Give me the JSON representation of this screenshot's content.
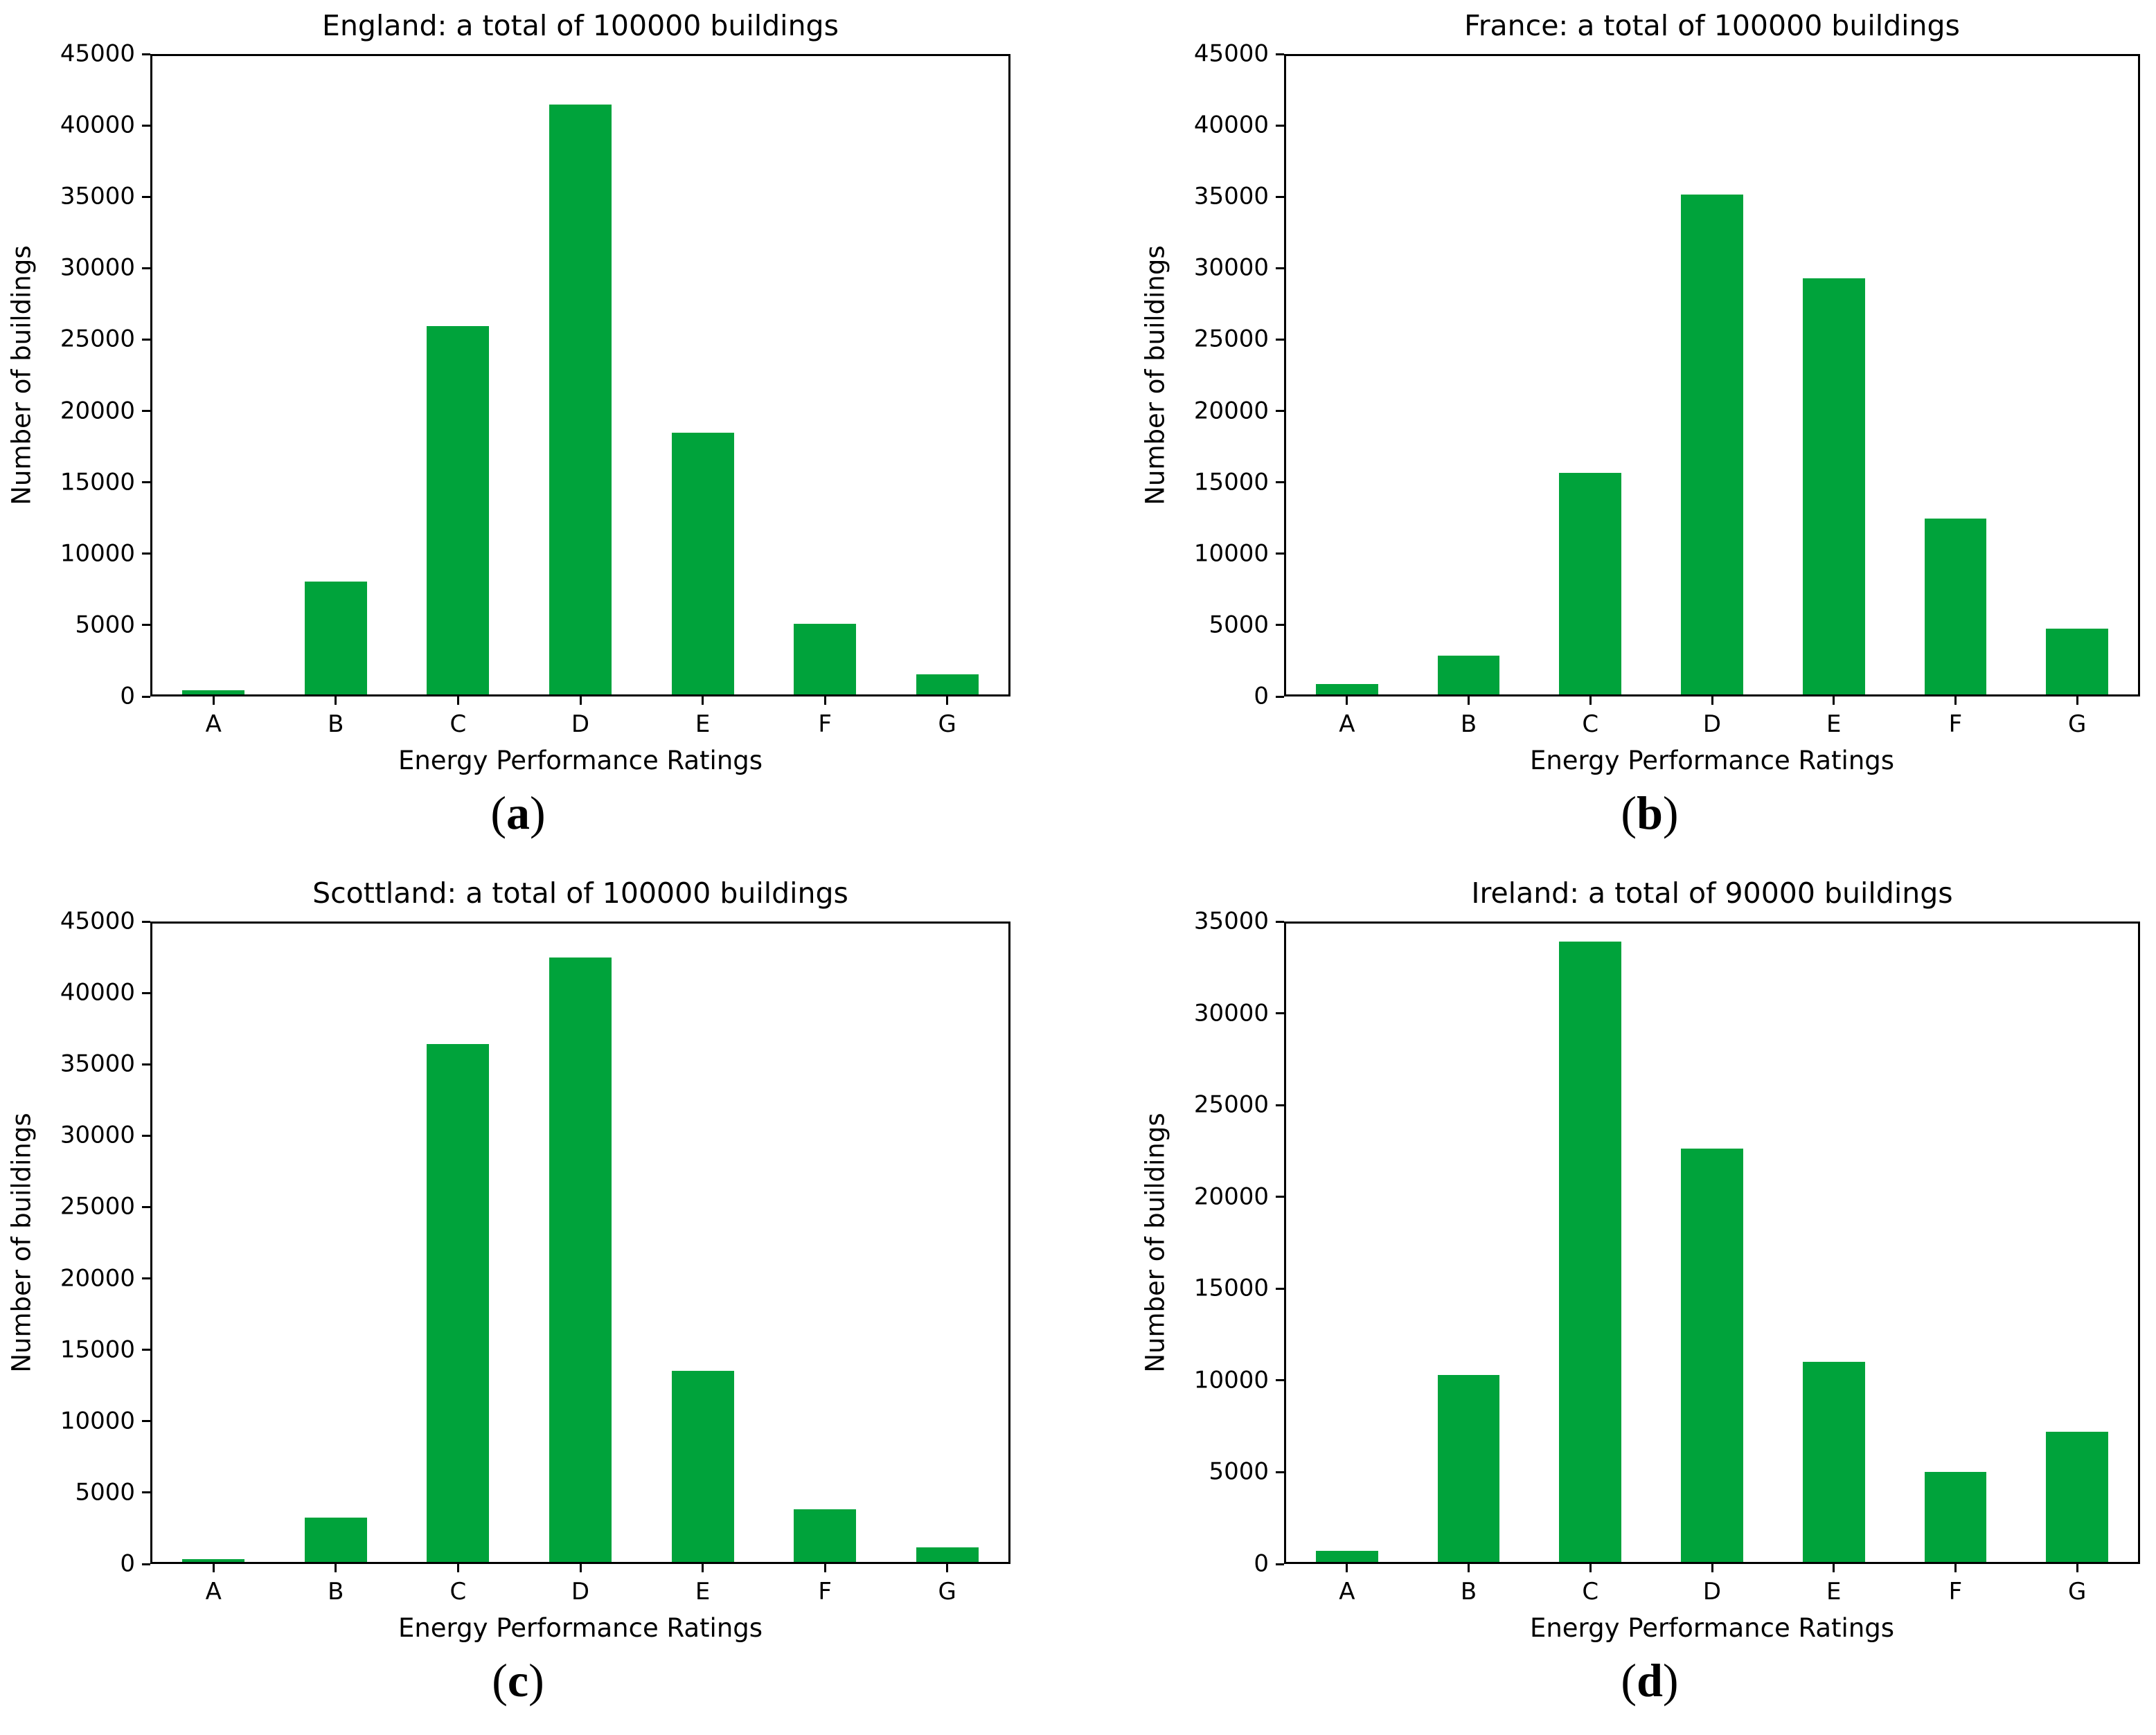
{
  "figure": {
    "background": "#ffffff",
    "bar_color": "#00a33b",
    "axis_color": "#000000",
    "grid_layout": "2x2",
    "captions": [
      "(a)",
      "(b)",
      "(c)",
      "(d)"
    ]
  },
  "chart_data": [
    {
      "id": "england",
      "type": "bar",
      "title": "England: a total of 100000 buildings",
      "caption": "(a)",
      "caption_letter": "a",
      "categories": [
        "A",
        "B",
        "C",
        "D",
        "E",
        "F",
        "G"
      ],
      "values": [
        300,
        7900,
        25800,
        41300,
        18350,
        4950,
        1400
      ],
      "total_buildings": 100000,
      "xlabel": "Energy Performance Ratings",
      "ylabel": "Number of buildings",
      "ylim": [
        0,
        45000
      ],
      "yticks": [
        0,
        5000,
        10000,
        15000,
        20000,
        25000,
        30000,
        35000,
        40000,
        45000
      ],
      "grid": false,
      "legend": false
    },
    {
      "id": "france",
      "type": "bar",
      "title": "France: a total of 100000 buildings",
      "caption": "(b)",
      "caption_letter": "b",
      "categories": [
        "A",
        "B",
        "C",
        "D",
        "E",
        "F",
        "G"
      ],
      "values": [
        750,
        2700,
        15500,
        35000,
        29150,
        12300,
        4600
      ],
      "total_buildings": 100000,
      "xlabel": "Energy Performance Ratings",
      "ylabel": "Number of buildings",
      "ylim": [
        0,
        45000
      ],
      "yticks": [
        0,
        5000,
        10000,
        15000,
        20000,
        25000,
        30000,
        35000,
        40000,
        45000
      ],
      "grid": false,
      "legend": false
    },
    {
      "id": "scottland",
      "type": "bar",
      "title": "Scottland: a total of 100000 buildings",
      "caption": "(c)",
      "caption_letter": "c",
      "categories": [
        "A",
        "B",
        "C",
        "D",
        "E",
        "F",
        "G"
      ],
      "values": [
        200,
        3100,
        36250,
        42350,
        13400,
        3700,
        1000
      ],
      "total_buildings": 100000,
      "xlabel": "Energy Performance Ratings",
      "ylabel": "Number of buildings",
      "ylim": [
        0,
        45000
      ],
      "yticks": [
        0,
        5000,
        10000,
        15000,
        20000,
        25000,
        30000,
        35000,
        40000,
        45000
      ],
      "grid": false,
      "legend": false
    },
    {
      "id": "ireland",
      "type": "bar",
      "title": "Ireland: a total of 90000 buildings",
      "caption": "(d)",
      "caption_letter": "d",
      "categories": [
        "A",
        "B",
        "C",
        "D",
        "E",
        "F",
        "G"
      ],
      "values": [
        600,
        10200,
        33800,
        22500,
        10900,
        4900,
        7100
      ],
      "total_buildings": 90000,
      "xlabel": "Energy Performance Ratings",
      "ylabel": "Number of buildings",
      "ylim": [
        0,
        35000
      ],
      "yticks": [
        0,
        5000,
        10000,
        15000,
        20000,
        25000,
        30000,
        35000
      ],
      "grid": false,
      "legend": false
    }
  ]
}
